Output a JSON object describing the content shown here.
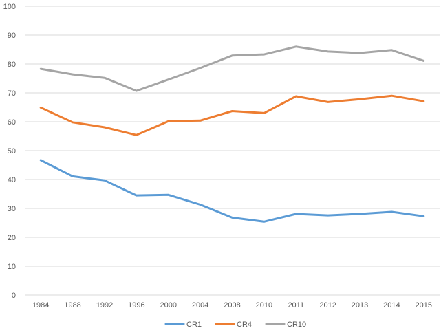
{
  "chart_data": {
    "type": "line",
    "title": "",
    "xlabel": "",
    "ylabel": "",
    "categories": [
      "1984",
      "1988",
      "1992",
      "1996",
      "2000",
      "2004",
      "2008",
      "2010",
      "2011",
      "2012",
      "2013",
      "2014",
      "2015"
    ],
    "ylim": [
      0,
      100
    ],
    "yticks": [
      "0",
      "10",
      "20",
      "30",
      "40",
      "50",
      "60",
      "70",
      "80",
      "90",
      "100"
    ],
    "grid": "horizontal",
    "legend_position": "bottom",
    "series": [
      {
        "name": "CR1",
        "color": "#5B9BD5",
        "values": [
          46.7,
          41.1,
          39.7,
          34.5,
          34.7,
          31.3,
          26.8,
          25.4,
          28.1,
          27.6,
          28.1,
          28.8,
          27.3
        ]
      },
      {
        "name": "CR4",
        "color": "#ED7D31",
        "values": [
          64.9,
          59.8,
          58.1,
          55.4,
          60.2,
          60.4,
          63.7,
          63.0,
          68.8,
          66.8,
          67.8,
          69.0,
          67.1
        ]
      },
      {
        "name": "CR10",
        "color": "#A5A5A5",
        "values": [
          78.3,
          76.4,
          75.2,
          70.7,
          74.6,
          78.6,
          82.9,
          83.3,
          86.0,
          84.3,
          83.8,
          84.8,
          81.1
        ]
      }
    ]
  }
}
